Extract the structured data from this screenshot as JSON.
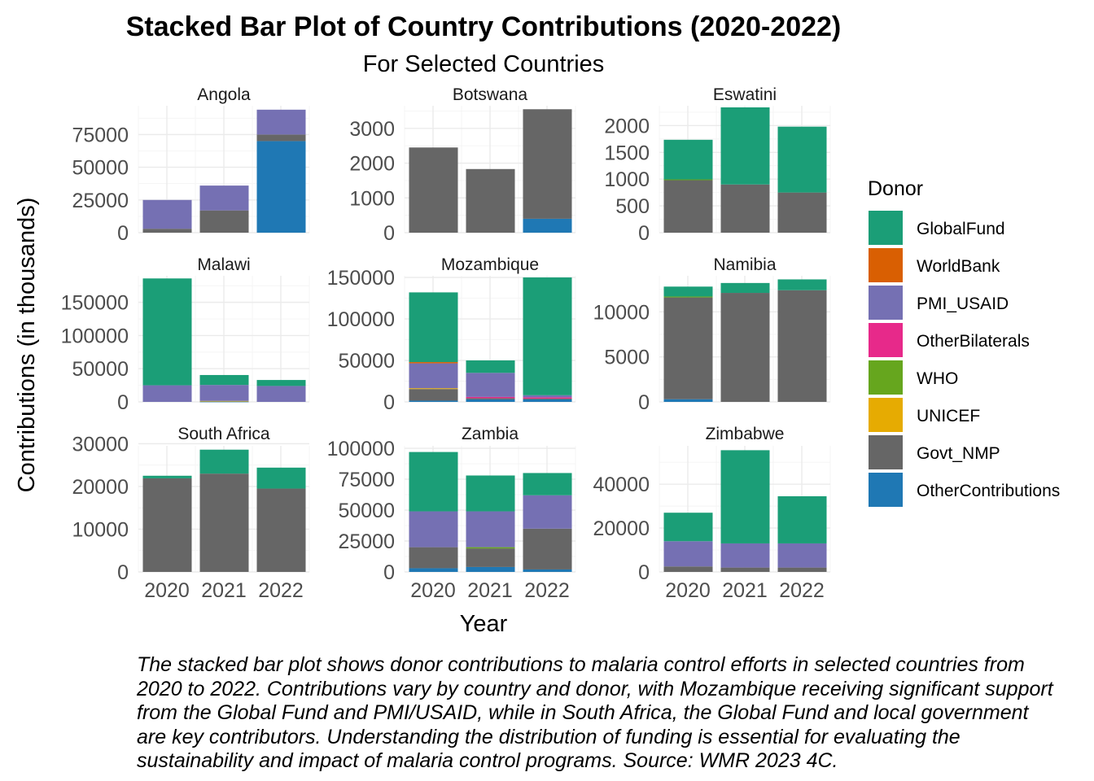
{
  "chart_data": {
    "type": "bar",
    "stacked": true,
    "faceted": true,
    "title": "Stacked Bar Plot of Country Contributions (2020-2022)",
    "subtitle": "For Selected Countries",
    "xlabel": "Year",
    "ylabel": "Contributions (in thousands)",
    "legend_title": "Donor",
    "legend_position": "right",
    "grid": true,
    "categories": [
      "2020",
      "2021",
      "2022"
    ],
    "donors": [
      {
        "name": "GlobalFund",
        "color": "#1B9E77"
      },
      {
        "name": "WorldBank",
        "color": "#D95F02"
      },
      {
        "name": "PMI_USAID",
        "color": "#7570B3"
      },
      {
        "name": "OtherBilaterals",
        "color": "#E7298A"
      },
      {
        "name": "WHO",
        "color": "#66A61E"
      },
      {
        "name": "UNICEF",
        "color": "#E6AB02"
      },
      {
        "name": "Govt_NMP",
        "color": "#666666"
      },
      {
        "name": "OtherContributions",
        "color": "#1F78B4"
      }
    ],
    "facets": [
      {
        "country": "Angola",
        "ylim": [
          0,
          97000
        ],
        "yticks": [
          0,
          25000,
          50000,
          75000
        ],
        "values": {
          "OtherContributions": [
            0,
            0,
            70000
          ],
          "Govt_NMP": [
            3000,
            17000,
            5000
          ],
          "PMI_USAID": [
            22000,
            19000,
            19000
          ]
        }
      },
      {
        "country": "Botswana",
        "ylim": [
          0,
          3650
        ],
        "yticks": [
          0,
          1000,
          2000,
          3000
        ],
        "values": {
          "OtherContributions": [
            0,
            0,
            400
          ],
          "Govt_NMP": [
            2450,
            1830,
            3150
          ]
        }
      },
      {
        "country": "Eswatini",
        "ylim": [
          0,
          2370
        ],
        "yticks": [
          0,
          500,
          1000,
          1500,
          2000
        ],
        "values": {
          "Govt_NMP": [
            980,
            900,
            750
          ],
          "WHO": [
            15,
            0,
            0
          ],
          "GlobalFund": [
            740,
            1440,
            1230
          ]
        }
      },
      {
        "country": "Malawi",
        "ylim": [
          0,
          190000
        ],
        "yticks": [
          0,
          50000,
          100000,
          150000
        ],
        "values": {
          "OtherContributions": [
            0,
            500,
            0
          ],
          "UNICEF": [
            0,
            1000,
            0
          ],
          "PMI_USAID": [
            25000,
            24000,
            24000
          ],
          "GlobalFund": [
            161000,
            15000,
            9000
          ]
        }
      },
      {
        "country": "Mozambique",
        "ylim": [
          0,
          152000
        ],
        "yticks": [
          0,
          50000,
          100000,
          150000
        ],
        "values": {
          "OtherContributions": [
            1500,
            3000,
            3000
          ],
          "Govt_NMP": [
            14000,
            1500,
            1000
          ],
          "OtherBilaterals": [
            0,
            1500,
            1500
          ],
          "UNICEF": [
            1000,
            0,
            0
          ],
          "WorldBank": [
            1500,
            0,
            0
          ],
          "PMI_USAID": [
            30000,
            29000,
            2500
          ],
          "GlobalFund": [
            84000,
            15000,
            142000
          ]
        }
      },
      {
        "country": "Namibia",
        "ylim": [
          0,
          14000
        ],
        "yticks": [
          0,
          5000,
          10000
        ],
        "values": {
          "OtherContributions": [
            300,
            0,
            0
          ],
          "Govt_NMP": [
            11300,
            12100,
            12400
          ],
          "WHO": [
            100,
            0,
            0
          ],
          "GlobalFund": [
            1100,
            1100,
            1200
          ]
        }
      },
      {
        "country": "South Africa",
        "ylim": [
          0,
          29500
        ],
        "yticks": [
          0,
          10000,
          20000,
          30000
        ],
        "values": {
          "Govt_NMP": [
            21900,
            23000,
            19500
          ],
          "GlobalFund": [
            600,
            5600,
            4900
          ]
        }
      },
      {
        "country": "Zambia",
        "ylim": [
          0,
          102000
        ],
        "yticks": [
          0,
          25000,
          50000,
          75000,
          100000
        ],
        "values": {
          "OtherContributions": [
            3000,
            4000,
            2000
          ],
          "Govt_NMP": [
            17000,
            15000,
            33000
          ],
          "WHO": [
            0,
            1000,
            0
          ],
          "PMI_USAID": [
            29000,
            29000,
            27000
          ],
          "GlobalFund": [
            48000,
            29000,
            18000
          ]
        }
      },
      {
        "country": "Zimbabwe",
        "ylim": [
          0,
          57500
        ],
        "yticks": [
          0,
          20000,
          40000
        ],
        "values": {
          "Govt_NMP": [
            2500,
            2000,
            2000
          ],
          "PMI_USAID": [
            11500,
            11000,
            11000
          ],
          "GlobalFund": [
            13000,
            42500,
            21500
          ]
        }
      }
    ]
  },
  "caption_lines": [
    "The stacked bar plot shows donor contributions to malaria control efforts in selected countries from",
    "2020 to 2022. Contributions vary by country and donor, with Mozambique receiving significant support",
    "from the Global Fund and PMI/USAID, while in South Africa, the Global Fund and local government",
    "are key contributors. Understanding the distribution of funding is essential for evaluating the",
    "sustainability and impact of malaria control programs. Source: WMR 2023 4C."
  ]
}
